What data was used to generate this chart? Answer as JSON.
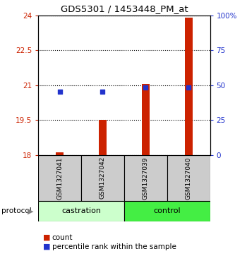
{
  "title": "GDS5301 / 1453448_PM_at",
  "samples": [
    "GSM1327041",
    "GSM1327042",
    "GSM1327039",
    "GSM1327040"
  ],
  "bar_bottom": 18,
  "bar_tops": [
    18.12,
    19.5,
    21.05,
    23.9
  ],
  "blue_dots": [
    20.72,
    20.72,
    20.9,
    20.9
  ],
  "ylim_left": [
    18,
    24
  ],
  "ylim_right": [
    0,
    100
  ],
  "yticks_left": [
    18,
    19.5,
    21,
    22.5,
    24
  ],
  "ytick_labels_left": [
    "18",
    "19.5",
    "21",
    "22.5",
    "24"
  ],
  "yticks_right": [
    0,
    25,
    50,
    75,
    100
  ],
  "ytick_labels_right": [
    "0",
    "25",
    "50",
    "75",
    "100%"
  ],
  "bar_color": "#cc2200",
  "dot_color": "#2233cc",
  "castration_color": "#ccffcc",
  "control_color": "#44ee44",
  "sample_box_color": "#cccccc",
  "bar_width": 0.18,
  "dot_size": 18
}
